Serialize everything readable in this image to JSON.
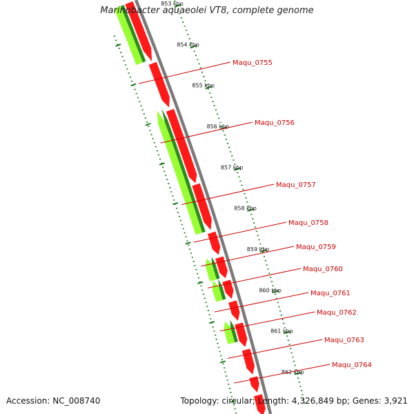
{
  "title": "Marinobacter aquaeolei VT8, complete genome",
  "footer": {
    "accession": "Accession: NC_008740",
    "summary": "Topology: circular; Length: 4,326,849 bp; Genes: 3,921"
  },
  "colors": {
    "reverse_gene": "#ff1a1a",
    "forward_gene_dark": "#2e8b22",
    "forward_gene_light": "#99ff33",
    "backbone": "#7a7a7a",
    "tick": "#1f7a1f",
    "label": "#cc0000"
  },
  "ticks": [
    "853 kbp",
    "854 kbp",
    "855 kbp",
    "856 kbp",
    "857 kbp",
    "858 kbp",
    "859 kbp",
    "860 kbp",
    "861 kbp",
    "862 kbp"
  ],
  "gene_labels": [
    "Maqu_0755",
    "Maqu_0756",
    "Maqu_0757",
    "Maqu_0758",
    "Maqu_0759",
    "Maqu_0760",
    "Maqu_0761",
    "Maqu_0762",
    "Maqu_0763",
    "Maqu_0764"
  ]
}
